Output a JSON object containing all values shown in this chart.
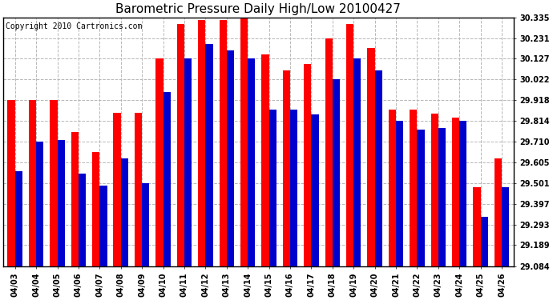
{
  "title": "Barometric Pressure Daily High/Low 20100427",
  "copyright": "Copyright 2010 Cartronics.com",
  "dates": [
    "04/03",
    "04/04",
    "04/05",
    "04/06",
    "04/07",
    "04/08",
    "04/09",
    "04/10",
    "04/11",
    "04/12",
    "04/13",
    "04/14",
    "04/15",
    "04/16",
    "04/17",
    "04/18",
    "04/19",
    "04/20",
    "04/21",
    "04/22",
    "04/23",
    "04/24",
    "04/25",
    "04/26"
  ],
  "highs": [
    29.918,
    29.918,
    29.918,
    29.76,
    29.656,
    29.856,
    29.856,
    30.127,
    30.3,
    30.32,
    30.32,
    30.335,
    30.15,
    30.07,
    30.1,
    30.231,
    30.3,
    30.18,
    29.87,
    29.87,
    29.85,
    29.83,
    29.48,
    29.625
  ],
  "lows": [
    29.56,
    29.71,
    29.72,
    29.55,
    29.49,
    29.625,
    29.5,
    29.96,
    30.127,
    30.2,
    30.17,
    30.127,
    29.87,
    29.87,
    29.845,
    30.022,
    30.127,
    30.07,
    29.814,
    29.77,
    29.78,
    29.814,
    29.33,
    29.48
  ],
  "yticks": [
    29.084,
    29.189,
    29.293,
    29.397,
    29.501,
    29.605,
    29.71,
    29.814,
    29.918,
    30.022,
    30.127,
    30.231,
    30.335
  ],
  "ymin": 29.084,
  "ymax": 30.335,
  "bar_color_high": "#ff0000",
  "bar_color_low": "#0000cc",
  "bg_color": "#ffffff",
  "grid_color": "#b0b0b0",
  "title_fontsize": 11,
  "copyright_fontsize": 7,
  "bar_width": 0.35
}
